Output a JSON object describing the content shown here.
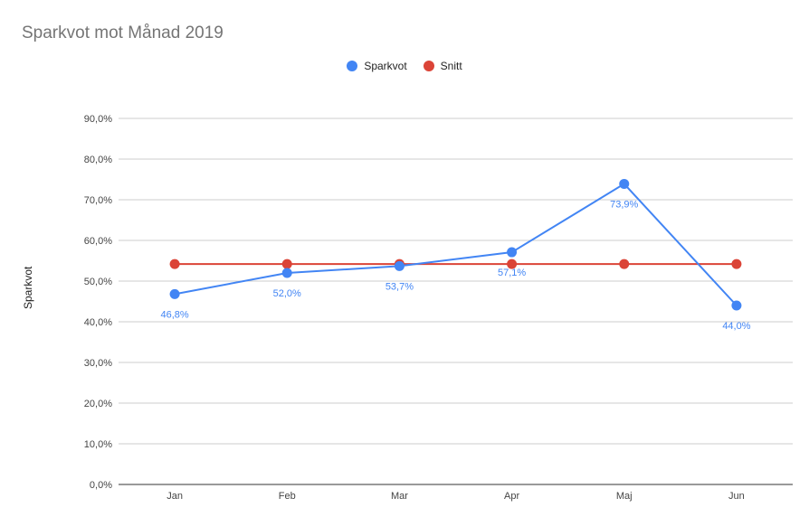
{
  "chart_data": {
    "type": "line",
    "title": "Sparkvot mot Månad 2019",
    "xlabel": "",
    "ylabel": "Sparkvot",
    "categories": [
      "Jan",
      "Feb",
      "Mar",
      "Apr",
      "Maj",
      "Jun"
    ],
    "ylim": [
      0,
      90
    ],
    "yticks": [
      0,
      10,
      20,
      30,
      40,
      50,
      60,
      70,
      80,
      90
    ],
    "ytick_labels": [
      "0,0%",
      "10,0%",
      "20,0%",
      "30,0%",
      "40,0%",
      "50,0%",
      "60,0%",
      "70,0%",
      "80,0%",
      "90,0%"
    ],
    "grid": true,
    "legend_position": "top",
    "series": [
      {
        "name": "Sparkvot",
        "color": "#4285f4",
        "values": [
          46.8,
          52.0,
          53.7,
          57.1,
          73.9,
          44.0
        ],
        "data_labels": [
          "46,8%",
          "52,0%",
          "53,7%",
          "57,1%",
          "73,9%",
          "44,0%"
        ]
      },
      {
        "name": "Snitt",
        "color": "#db4437",
        "values": [
          54.2,
          54.2,
          54.2,
          54.2,
          54.2,
          54.2
        ]
      }
    ]
  }
}
